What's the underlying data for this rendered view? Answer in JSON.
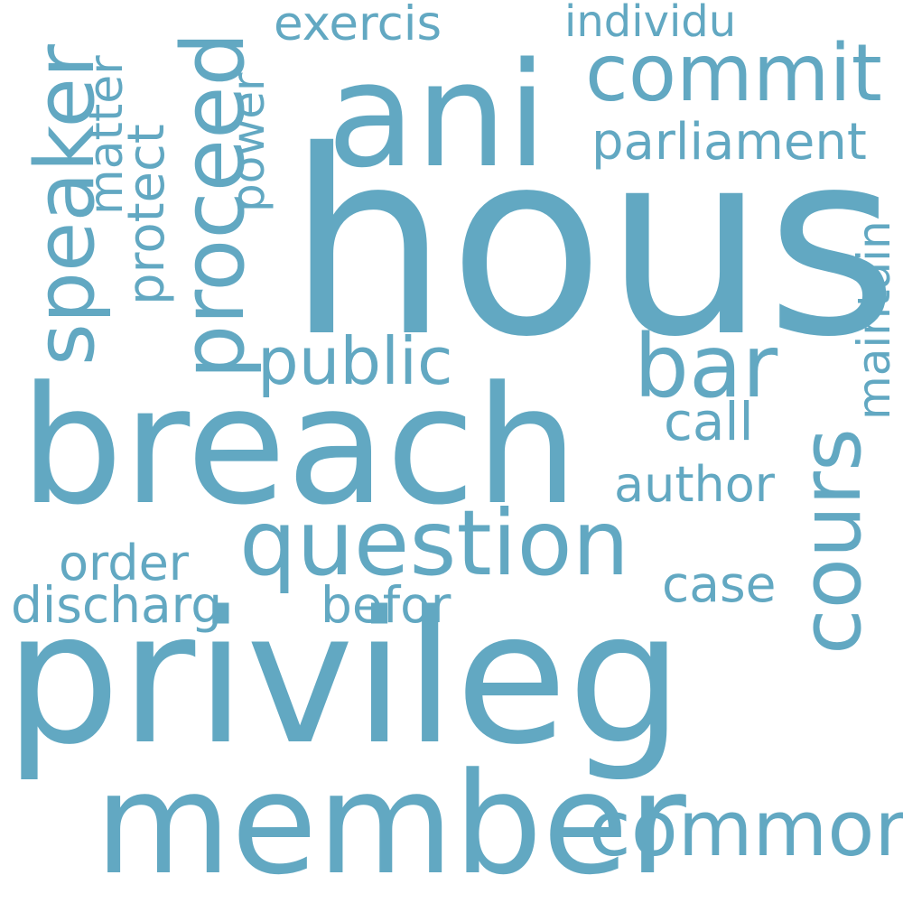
{
  "color": "#62a8c2",
  "background": "#ffffff",
  "words": {
    "hous": "hous",
    "privileg": "privileg",
    "breach": "breach",
    "ani": "ani",
    "member": "member",
    "question": "question",
    "proceed": "proceed",
    "cours": "cours",
    "commit": "commit",
    "speaker": "speaker",
    "common": "common",
    "bar": "bar",
    "public": "public",
    "parliament": "parliament",
    "author": "author",
    "matter": "matter",
    "protect": "protect",
    "power": "power",
    "exercis": "exercis",
    "individu": "individu",
    "maintain": "maintain",
    "call": "call",
    "order": "order",
    "case": "case",
    "discharg": "discharg",
    "befor": "befor"
  }
}
